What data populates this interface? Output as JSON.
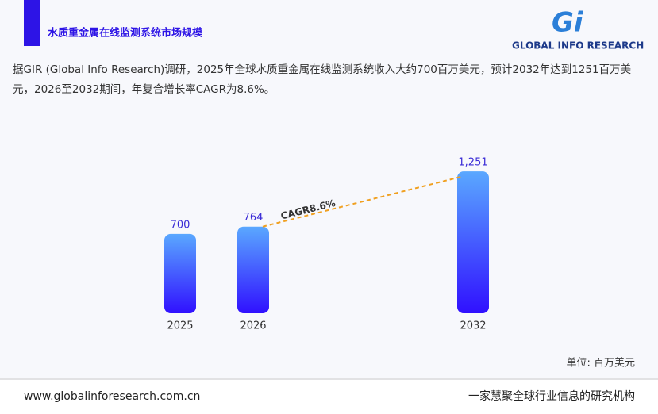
{
  "header": {
    "logo_mark": "Gi",
    "logo_text": "GLOBAL INFO RESEARCH"
  },
  "chart_data": {
    "type": "bar",
    "title": "水质重金属在线监测系统市场规模",
    "subtitle": "据GIR (Global Info Research)调研，2025年全球水质重金属在线监测系统收入大约700百万美元，预计2032年达到1251百万美元，2026至2032期间，年复合增长率CAGR为8.6%。",
    "categories": [
      "2025",
      "2026",
      "2032"
    ],
    "values": [
      700,
      764,
      1251
    ],
    "value_labels": [
      "700",
      "764",
      "1,251"
    ],
    "colors": [
      "#5aa8ff",
      "#3010ff"
    ],
    "annotation": "CAGR8.6%",
    "unit_label": "单位: 百万美元"
  },
  "footer": {
    "website": "www.globalinforesearch.com.cn",
    "slogan": "一家慧聚全球行业信息的研究机构"
  }
}
